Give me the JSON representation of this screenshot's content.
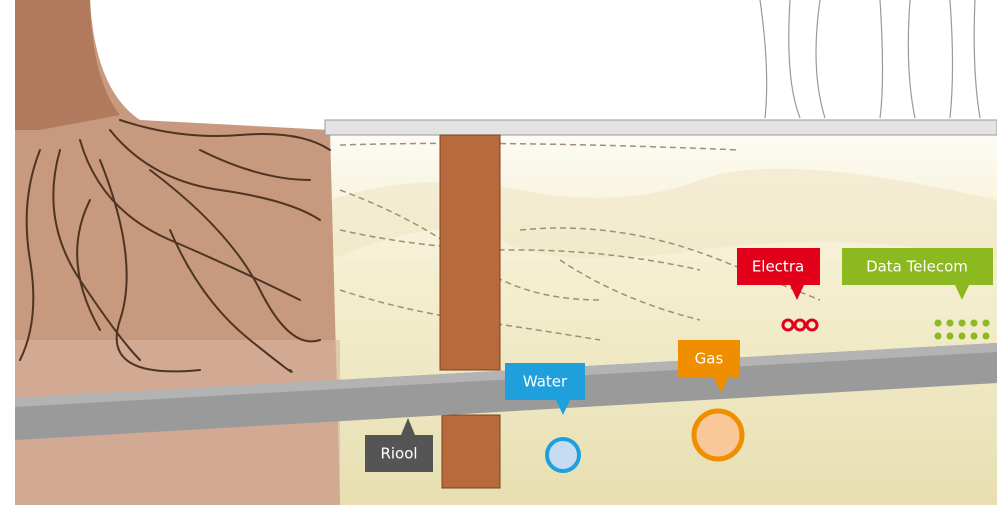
{
  "callouts": [
    {
      "label": "Electra"
    },
    {
      "label": "Data Telecom"
    },
    {
      "label": "Gas"
    },
    {
      "label": "Water"
    },
    {
      "label": "Riool"
    }
  ]
}
